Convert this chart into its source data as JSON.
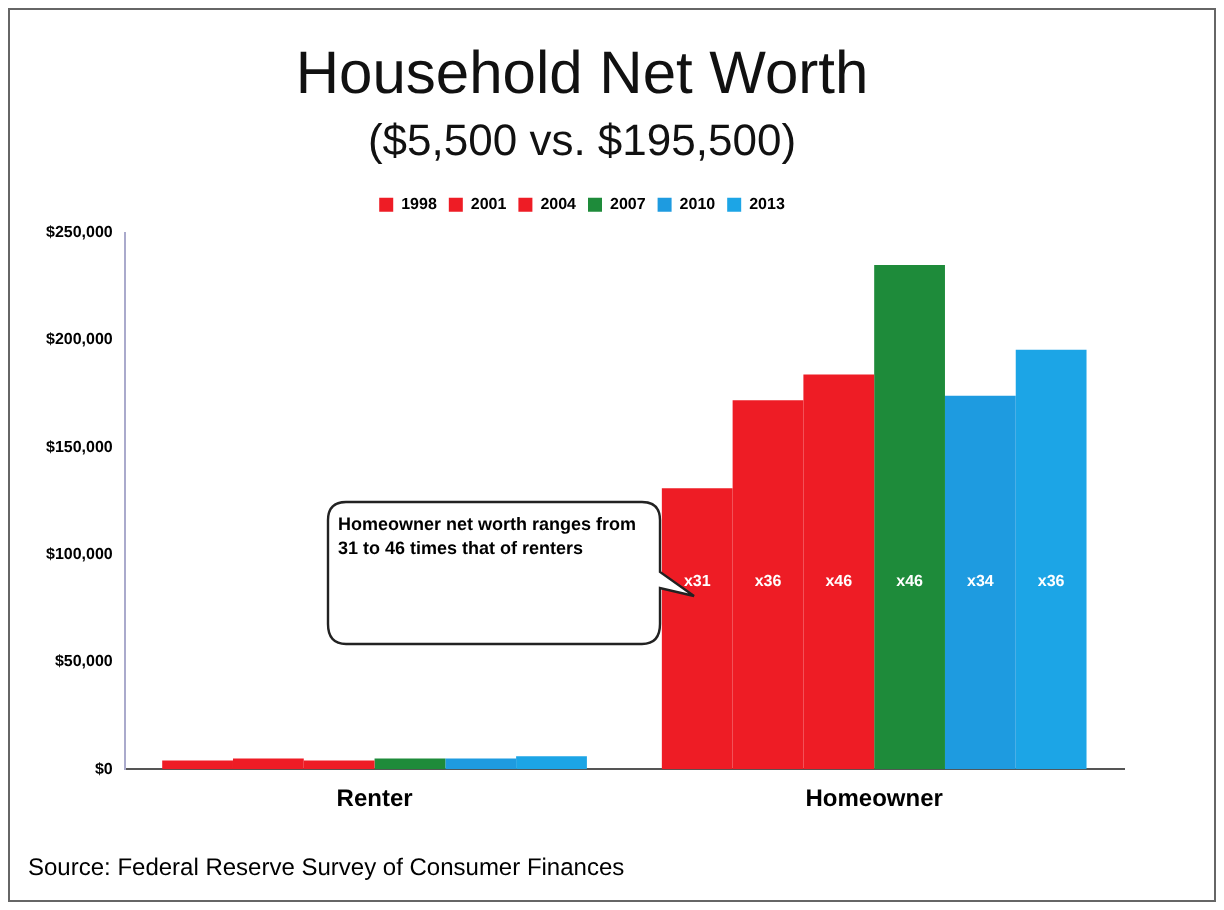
{
  "chart_data": {
    "type": "bar",
    "title": "Household Net Worth",
    "subtitle": "($5,500 vs. $195,500)",
    "categories": [
      "Renter",
      "Homeowner"
    ],
    "series": [
      {
        "name": "1998",
        "color": "#ee1c25",
        "values": [
          4000,
          131000
        ],
        "value_labels": [
          null,
          "x31"
        ]
      },
      {
        "name": "2001",
        "color": "#ee1c25",
        "values": [
          5000,
          172000
        ],
        "value_labels": [
          null,
          "x36"
        ]
      },
      {
        "name": "2004",
        "color": "#ee1c25",
        "values": [
          4000,
          184000
        ],
        "value_labels": [
          null,
          "x46"
        ]
      },
      {
        "name": "2007",
        "color": "#1e8b3a",
        "values": [
          5000,
          235000
        ],
        "value_labels": [
          null,
          "x46"
        ]
      },
      {
        "name": "2010",
        "color": "#1e9be0",
        "values": [
          5000,
          174000
        ],
        "value_labels": [
          null,
          "x34"
        ]
      },
      {
        "name": "2013",
        "color": "#1ca5e6",
        "values": [
          6000,
          195500
        ],
        "value_labels": [
          null,
          "x36"
        ]
      }
    ],
    "ylim": [
      0,
      250000
    ],
    "yticks": [
      {
        "value": 0,
        "label": "$0"
      },
      {
        "value": 50000,
        "label": "$50,000"
      },
      {
        "value": 100000,
        "label": "$100,000"
      },
      {
        "value": 150000,
        "label": "$150,000"
      },
      {
        "value": 200000,
        "label": "$200,000"
      },
      {
        "value": 250000,
        "label": "$250,000"
      }
    ],
    "grid": false,
    "legend": "top",
    "annotations": [
      "Homeowner net worth ranges from 31 to 46 times that of renters",
      "Source: Federal Reserve Survey of Consumer Finances"
    ]
  }
}
